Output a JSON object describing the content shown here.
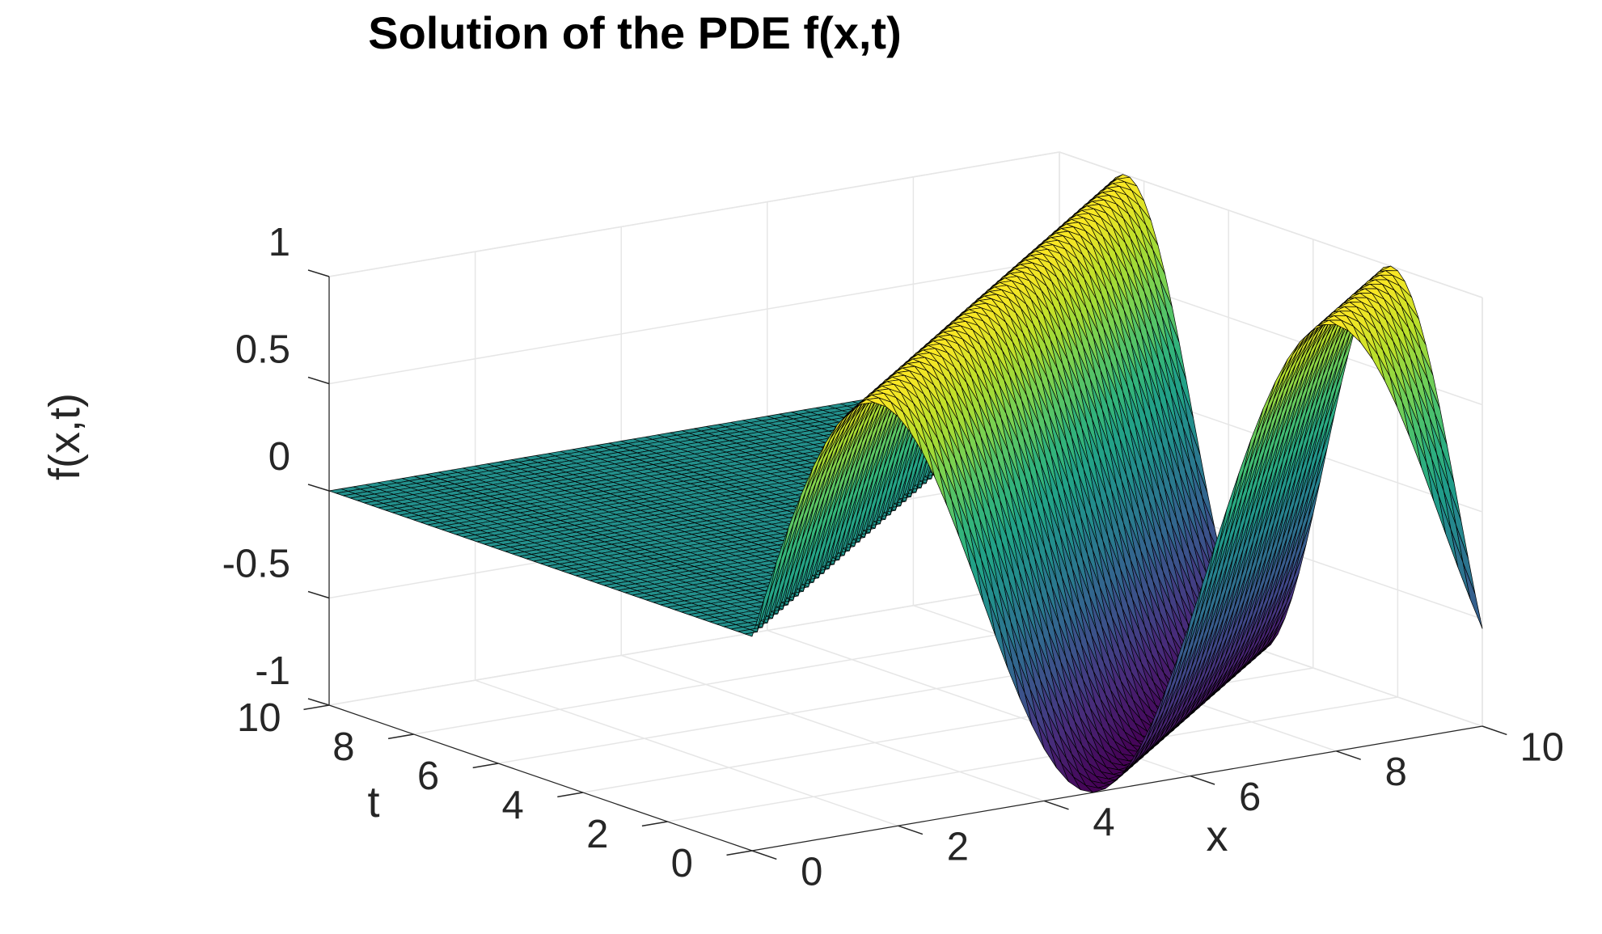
{
  "chart_data": {
    "type": "surface",
    "title": "Solution of the PDE f(x,t)",
    "xlabel": "x",
    "ylabel": "t",
    "zlabel": "f(x,t)",
    "xlim": [
      0,
      10
    ],
    "ylim": [
      0,
      10
    ],
    "zlim": [
      -1,
      1
    ],
    "xticks": [
      "0",
      "2",
      "4",
      "6",
      "8",
      "10"
    ],
    "yticks": [
      "0",
      "2",
      "4",
      "6",
      "8",
      "10"
    ],
    "zticks": [
      "-1",
      "-0.5",
      "0",
      "0.5",
      "1"
    ],
    "grid": true,
    "colormap": "viridis",
    "surface": {
      "function": "traveling sine wave f = sin(x - t) for x > t, otherwise 0",
      "wave_speed": 1,
      "extrema_x": [
        4.7,
        7.9
      ],
      "extrema_z": [
        -1,
        1
      ]
    }
  }
}
